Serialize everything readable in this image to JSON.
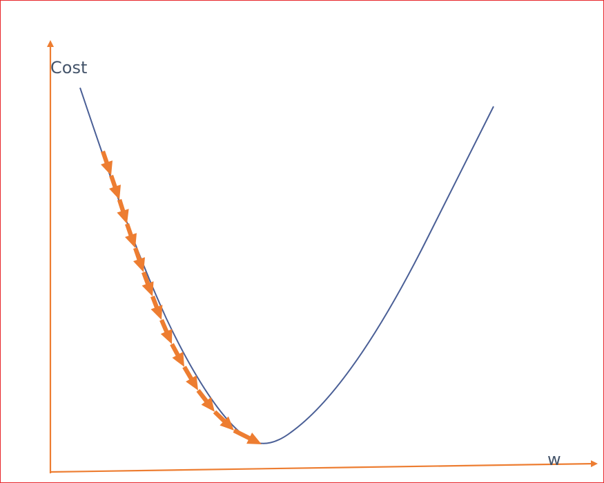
{
  "diagram": {
    "labels": {
      "y_axis": "Cost",
      "x_axis": "w"
    },
    "colors": {
      "frame": "#e8262a",
      "axes": "#ed7d31",
      "curve": "#4a5f96",
      "steps": "#ed7d31",
      "text": "#44546a"
    },
    "gradient_steps": 13
  }
}
